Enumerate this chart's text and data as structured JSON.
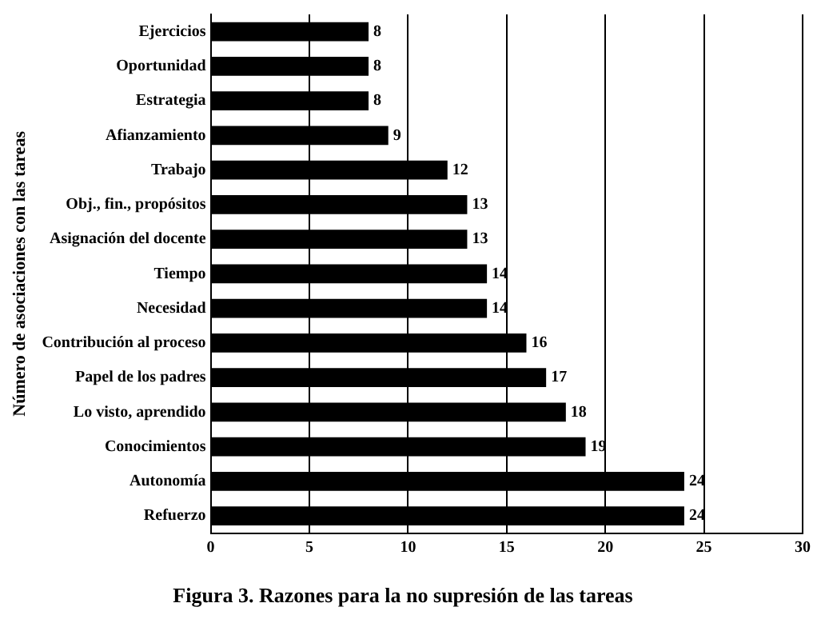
{
  "chart_data": {
    "type": "bar",
    "orientation": "horizontal",
    "title": "Figura 3. Razones para la no supresión de las tareas",
    "ylabel": "Número de asociaciones con las tareas",
    "categories": [
      "Ejercicios",
      "Oportunidad",
      "Estrategia",
      "Afianzamiento",
      "Trabajo",
      "Obj., fin., propósitos",
      "Asignación del docente",
      "Tiempo",
      "Necesidad",
      "Contribución al proceso",
      "Papel de los padres",
      "Lo visto, aprendido",
      "Conocimientos",
      "Autonomía",
      "Refuerzo"
    ],
    "values": [
      8,
      8,
      8,
      9,
      12,
      13,
      13,
      14,
      14,
      16,
      17,
      18,
      19,
      24,
      24
    ],
    "color": "#000000",
    "xlim": [
      0,
      30
    ],
    "xticks": [
      0,
      5,
      10,
      15,
      20,
      25,
      30
    ],
    "grid": "x",
    "data_labels": true,
    "legend": false
  }
}
